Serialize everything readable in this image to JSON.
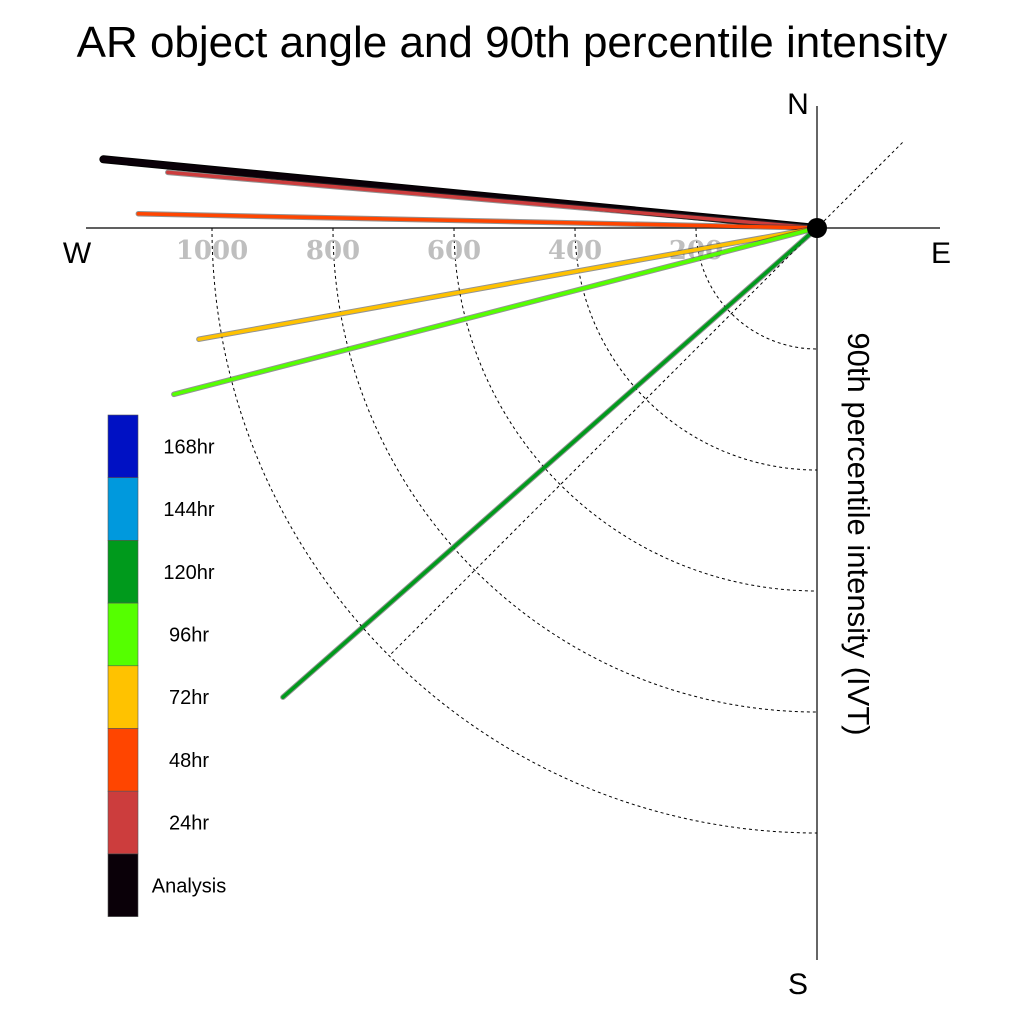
{
  "chart_data": {
    "type": "polar-vector",
    "title": "AR object angle and 90th percentile intensity",
    "ylabel": "90th percentile intensity (IVT)",
    "compass": {
      "north": "N",
      "south": "S",
      "east": "E",
      "west": "W"
    },
    "radial_ticks": [
      {
        "value": 200,
        "label": "200"
      },
      {
        "value": 400,
        "label": "400"
      },
      {
        "value": 600,
        "label": "600"
      },
      {
        "value": 800,
        "label": "800"
      },
      {
        "value": 1000,
        "label": "1000"
      }
    ],
    "grid": true,
    "series": [
      {
        "name": "Analysis",
        "color": "#0a0008",
        "angle_deg_from_east": 174.5,
        "intensity": 1185
      },
      {
        "name": "24hr",
        "color": "#cc3d3d",
        "angle_deg_from_east": 175.1,
        "intensity": 1077
      },
      {
        "name": "48hr",
        "color": "#ff4500",
        "angle_deg_from_east": 178.8,
        "intensity": 1122
      },
      {
        "name": "72hr",
        "color": "#ffc200",
        "angle_deg_from_east": 190.2,
        "intensity": 1038
      },
      {
        "name": "96hr",
        "color": "#55ff00",
        "angle_deg_from_east": 194.5,
        "intensity": 1098
      },
      {
        "name": "120hr",
        "color": "#009a1c",
        "angle_deg_from_east": 221.3,
        "intensity": 1175
      }
    ],
    "legend": {
      "placement": "left",
      "entries": [
        {
          "label": "168hr",
          "color": "#0011c4"
        },
        {
          "label": "144hr",
          "color": "#0099dd"
        },
        {
          "label": "120hr",
          "color": "#009a1c"
        },
        {
          "label": "96hr",
          "color": "#55ff00"
        },
        {
          "label": "72hr",
          "color": "#ffc200"
        },
        {
          "label": "48hr",
          "color": "#ff4500"
        },
        {
          "label": "24hr",
          "color": "#cc3d3d"
        },
        {
          "label": "Analysis",
          "color": "#0a0008"
        }
      ]
    }
  }
}
